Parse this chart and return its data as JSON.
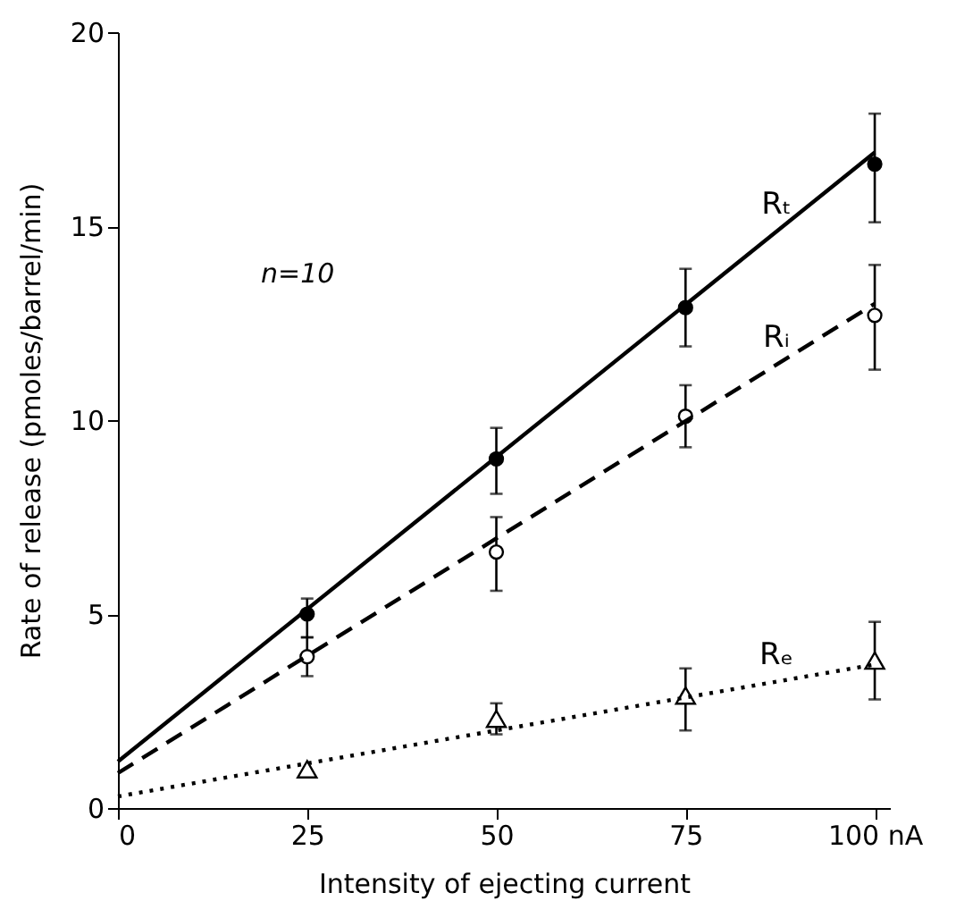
{
  "chart_data": {
    "type": "scatter",
    "xlabel": "Intensity of ejecting current",
    "ylabel": "Rate of release (pmoles/barrel/min)",
    "annotations": [
      "n=10"
    ],
    "xlim": [
      0,
      102
    ],
    "ylim": [
      0,
      20
    ],
    "xticks": [
      0,
      25,
      50,
      75,
      {
        "value": 100,
        "label": "100 nA"
      }
    ],
    "yticks": [
      0,
      5,
      10,
      15,
      20
    ],
    "grid": false,
    "legend": false,
    "series": [
      {
        "color": "#000000",
        "marker": "circle",
        "x": [
          25,
          50,
          75,
          100
        ],
        "values": [
          5.0,
          9.0,
          12.9,
          16.6
        ],
        "errors": [
          [
            4.4,
            5.4
          ],
          [
            8.1,
            9.8
          ],
          [
            11.9,
            13.9
          ],
          [
            15.1,
            17.9
          ]
        ]
      },
      {
        "color": "#ffffff",
        "marker": "circle",
        "x": [
          25,
          50,
          75,
          100
        ],
        "values": [
          3.9,
          6.6,
          10.1,
          12.7
        ],
        "errors": [
          [
            3.4,
            4.4
          ],
          [
            5.6,
            7.5
          ],
          [
            9.3,
            10.9
          ],
          [
            11.3,
            14.0
          ]
        ]
      },
      {
        "color": "#ffffff",
        "marker": "triangle",
        "x": [
          25,
          50,
          75,
          100
        ],
        "values": [
          1.0,
          2.3,
          2.9,
          3.8
        ],
        "errors": [
          null,
          [
            1.9,
            2.7
          ],
          [
            2.0,
            3.6
          ],
          [
            2.8,
            4.8
          ]
        ]
      },
      {
        "type": "line",
        "name": "Rₜ",
        "color": "#000000",
        "line_style": "solid",
        "marker": "none",
        "x": [
          0,
          100
        ],
        "values": [
          1.2,
          16.9
        ]
      },
      {
        "type": "line",
        "name": "Rᵢ",
        "color": "#000000",
        "line_style": "dashed",
        "marker": "none",
        "x": [
          0,
          100
        ],
        "values": [
          0.9,
          13.0
        ]
      },
      {
        "type": "line",
        "name": "Rₑ",
        "color": "#000000",
        "line_style": "dotted",
        "marker": "none",
        "x": [
          0,
          100
        ],
        "values": [
          0.3,
          3.7
        ]
      }
    ]
  }
}
